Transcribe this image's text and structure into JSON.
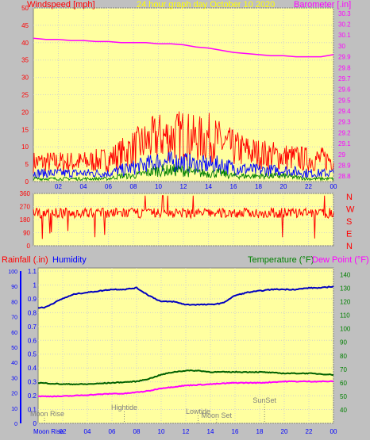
{
  "chart_data": [
    {
      "type": "line",
      "title": "24 hour graph day   October 10 2020",
      "y_left_label": "Windspeed [mph]",
      "y_right_label": "Barometer [.in]",
      "y_left_ticks": [
        "0",
        "5",
        "10",
        "15",
        "20",
        "25",
        "30",
        "35",
        "40",
        "45",
        "50"
      ],
      "y_left_lim": [
        0,
        50
      ],
      "y_right_ticks": [
        "28.8",
        "28.9",
        "29",
        "29.1",
        "29.2",
        "29.3",
        "29.4",
        "29.5",
        "29.6",
        "29.7",
        "29.8",
        "29.9",
        "30",
        "30.1",
        "30.2",
        "30.3"
      ],
      "y_right_lim": [
        28.75,
        30.35
      ],
      "x_ticks": [
        "02",
        "04",
        "06",
        "08",
        "10",
        "12",
        "14",
        "16",
        "18",
        "20",
        "22",
        "00"
      ],
      "colors": {
        "gust": "#ff0000",
        "average": "#0000ff",
        "low": "#008000",
        "barometer": "#ff00ff",
        "axis_left": "#ff0000",
        "axis_right": "#ff00ff",
        "title": "#ffff00",
        "plot_bg": "#ffffa0",
        "frame_bg": "#c0c0c0"
      },
      "barometer_hours": [
        0,
        1,
        2,
        3,
        4,
        5,
        6,
        7,
        8,
        9,
        10,
        11,
        12,
        13,
        14,
        15,
        16,
        17,
        18,
        19,
        20,
        21,
        22,
        23,
        24
      ],
      "barometer_values": [
        30.07,
        30.06,
        30.06,
        30.05,
        30.05,
        30.04,
        30.04,
        30.03,
        30.03,
        30.03,
        30.02,
        30.02,
        30.01,
        29.99,
        29.98,
        29.96,
        29.94,
        29.93,
        29.92,
        29.91,
        29.91,
        29.9,
        29.9,
        29.9,
        29.92
      ],
      "wind_hours": [
        0,
        2,
        4,
        6,
        7,
        8,
        9,
        10,
        11,
        12,
        13,
        14,
        15,
        16,
        18,
        20,
        22,
        24
      ],
      "gust_values": [
        7,
        7,
        7,
        8,
        10,
        12,
        14,
        16,
        16,
        17,
        15,
        16,
        14,
        12,
        10,
        9,
        8,
        8
      ],
      "average_values": [
        3,
        3,
        3,
        3,
        4,
        5,
        6,
        7,
        7,
        7,
        6,
        6,
        6,
        5,
        4,
        4,
        3,
        3
      ],
      "low_values": [
        1,
        1,
        1,
        1,
        2,
        2,
        3,
        4,
        4,
        4,
        3,
        3,
        3,
        2,
        2,
        2,
        1,
        1
      ]
    },
    {
      "type": "line",
      "title": "",
      "y_left_ticks": [
        "0",
        "90",
        "180",
        "270",
        "360"
      ],
      "y_left_lim": [
        0,
        360
      ],
      "y_right_letters": [
        "N",
        "W",
        "S",
        "E",
        "N"
      ],
      "x_ticks": [],
      "series": [
        {
          "name": "",
          "color": "#ff0000",
          "mean": 225,
          "spread": 35
        }
      ]
    },
    {
      "type": "line",
      "y_left_label": "Rainfall (.in)",
      "y_left_label2": "Humidity",
      "y_right_label": "Temperature (°F)",
      "y_right_label2": "Dew Point (°F)",
      "y_humidity_ticks": [
        "0",
        "10",
        "20",
        "30",
        "40",
        "50",
        "60",
        "70",
        "80",
        "90",
        "100"
      ],
      "y_humidity_lim": [
        0,
        100
      ],
      "y_rain_ticks": [
        "0",
        "0.1",
        "0.2",
        "0.3",
        "0.4",
        "0.5",
        "0.6",
        "0.7",
        "0.8",
        "0.9",
        "1",
        "1.1"
      ],
      "y_rain_lim": [
        0,
        1.1
      ],
      "y_temp_ticks": [
        "40",
        "50",
        "60",
        "70",
        "80",
        "90",
        "100",
        "110",
        "120",
        "130",
        "140"
      ],
      "y_temp_lim": [
        30,
        145
      ],
      "x_ticks": [
        "02",
        "04",
        "06",
        "08",
        "10",
        "12",
        "14",
        "16",
        "18",
        "20",
        "22",
        "00"
      ],
      "colors": {
        "humidity": "#0000c0",
        "temperature": "#006000",
        "dewpoint": "#ff00ff",
        "rain_axis": "#0000ff",
        "temp_axis": "#008000"
      },
      "humidity_hours": [
        0,
        0.5,
        1,
        2,
        3,
        4,
        5,
        6,
        7,
        8,
        9,
        10,
        11,
        12,
        13,
        14,
        15,
        16,
        17,
        18,
        19,
        20,
        21,
        22,
        23,
        24
      ],
      "humidity_values": [
        76,
        76,
        78,
        82,
        85,
        86,
        87,
        88,
        88,
        89,
        84,
        80,
        80,
        78,
        78,
        78,
        79,
        84,
        86,
        87,
        88,
        88,
        88,
        89,
        89,
        90
      ],
      "temperature_hours": [
        0,
        2,
        4,
        6,
        8,
        9,
        10,
        11,
        12,
        13,
        14,
        15,
        16,
        18,
        20,
        22,
        24
      ],
      "temperature_values": [
        60,
        59,
        59,
        60,
        61,
        63,
        66,
        68,
        69,
        69,
        68,
        68,
        68,
        68,
        67,
        67,
        66
      ],
      "dewpoint_hours": [
        0,
        2,
        4,
        6,
        7,
        8,
        9,
        10,
        11,
        12,
        14,
        16,
        18,
        20,
        22,
        24
      ],
      "dewpoint_values": [
        50,
        50,
        51,
        52,
        52,
        53,
        54,
        56,
        57,
        58,
        59,
        60,
        60,
        61,
        61,
        61
      ],
      "annotations": [
        {
          "text": "Moon Rise",
          "hour": 0
        },
        {
          "text": "Hightide",
          "hour": 7
        },
        {
          "text": "Lowtide",
          "hour": 13
        },
        {
          "text": "Moon Set",
          "hour": 14.5
        },
        {
          "text": "SunSet",
          "hour": 18.4
        }
      ],
      "bottom_left_label": "Moon Rise"
    }
  ]
}
